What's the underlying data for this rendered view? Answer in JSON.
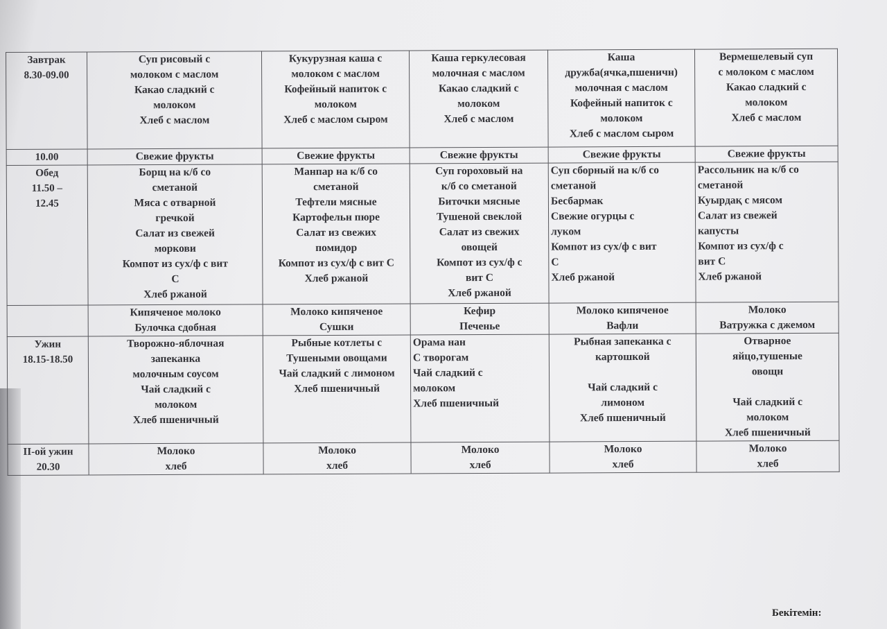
{
  "menu_table": {
    "rows": [
      {
        "meal": [
          "Завтрак",
          "8.30-09.00"
        ],
        "cells": [
          [
            "Суп рисовый с",
            "молоком с маслом",
            "Какао сладкий с",
            "молоком",
            "Хлеб с маслом"
          ],
          [
            "Кукурузная каша с",
            "молоком с маслом",
            "Кофейный напиток с",
            "молоком",
            "Хлеб с маслом сыром"
          ],
          [
            "Каша геркулесовая",
            "молочная с маслом",
            "Какао сладкий с",
            "молоком",
            "Хлеб с маслом"
          ],
          [
            "Каша",
            "дружба(ячка,пшеничн)",
            "молочная с маслом",
            "Кофейный напиток с",
            "молоком",
            "Хлеб с маслом сыром"
          ],
          [
            "Вермешелевый суп",
            "с молоком с маслом",
            "Какао сладкий с",
            "молоком",
            "Хлеб с маслом"
          ]
        ]
      },
      {
        "meal": [
          "10.00"
        ],
        "cells": [
          [
            "Свежие фрукты"
          ],
          [
            "Свежие фрукты"
          ],
          [
            "Свежие фрукты"
          ],
          [
            "Свежие фрукты"
          ],
          [
            "Свежие фрукты"
          ]
        ]
      },
      {
        "meal": [
          "Обед",
          "11.50 –",
          "12.45"
        ],
        "cells": [
          [
            "Борщ на к/б со",
            "сметаной",
            "Мяса с отварной",
            "гречкой",
            "Салат из свежей",
            "моркови",
            "Компот из сух/ф с вит",
            "С",
            "Хлеб ржаной"
          ],
          [
            "Манпар на к/б со",
            "сметаной",
            "Тефтели мясные",
            "Картофельн пюре",
            "Салат из свежих",
            "помидор",
            "Компот из сух/ф с вит С",
            "Хлеб ржаной"
          ],
          [
            "Суп гороховый на",
            "к/б со сметаной",
            "Биточки мясные",
            "Тушеной свеклой",
            "Салат из свежих",
            "овощей",
            "Компот из сух/ф с",
            "вит С",
            "Хлеб ржаной"
          ],
          [
            "Суп сборный на к/б со",
            "сметаной",
            "Бесбармак",
            "Свежие огурцы с",
            "луком",
            "Компот из сух/ф с вит",
            "С",
            "Хлеб ржаной"
          ],
          [
            "Рассольник на к/б со",
            "сметаной",
            "Куырдақ с мясом",
            "Салат из свежей",
            "капусты",
            "Компот из сух/ф с",
            "вит С",
            "Хлеб ржаной"
          ]
        ]
      },
      {
        "meal": [],
        "cells": [
          [
            "Кипяченое молоко",
            "Булочка сдобная"
          ],
          [
            "Молоко кипяченое",
            "Сушки"
          ],
          [
            "Кефир",
            "Печенье"
          ],
          [
            "Молоко кипяченое",
            "Вафли"
          ],
          [
            "Молоко",
            "Ватружка с джемом"
          ]
        ]
      },
      {
        "meal": [
          "Ужин",
          "18.15-18.50"
        ],
        "cells": [
          [
            "Творожно-яблочная",
            "запеканка",
            "молочным соусом",
            "Чай сладкий с",
            "молоком",
            "Хлеб пшеничный"
          ],
          [
            "Рыбные котлеты с",
            "Тушеными овощами",
            "Чай сладкий с лимоном",
            "Хлеб пшеничный"
          ],
          [
            "Орама нан",
            "С творогам",
            "Чай сладкий с",
            "молоком",
            "Хлеб пшеничный"
          ],
          [
            "Рыбная запеканка с",
            "картошкой",
            "",
            "Чай сладкий с",
            "лимоном",
            "Хлеб пшеничный"
          ],
          [
            "Отварное",
            "яйцо,тушеные",
            "овощн",
            "",
            "Чай сладкий с",
            "молоком",
            "Хлеб пшеничный"
          ]
        ]
      },
      {
        "meal": [
          "II-ой ужин",
          "20.30"
        ],
        "cells": [
          [
            "Молоко",
            "хлеб"
          ],
          [
            "Молоко",
            "хлеб"
          ],
          [
            "Молоко",
            "хлеб"
          ],
          [
            "Молоко",
            "хлеб"
          ],
          [
            "Молоко",
            "хлеб"
          ]
        ]
      }
    ]
  },
  "approval_label": "Бекітемін:"
}
